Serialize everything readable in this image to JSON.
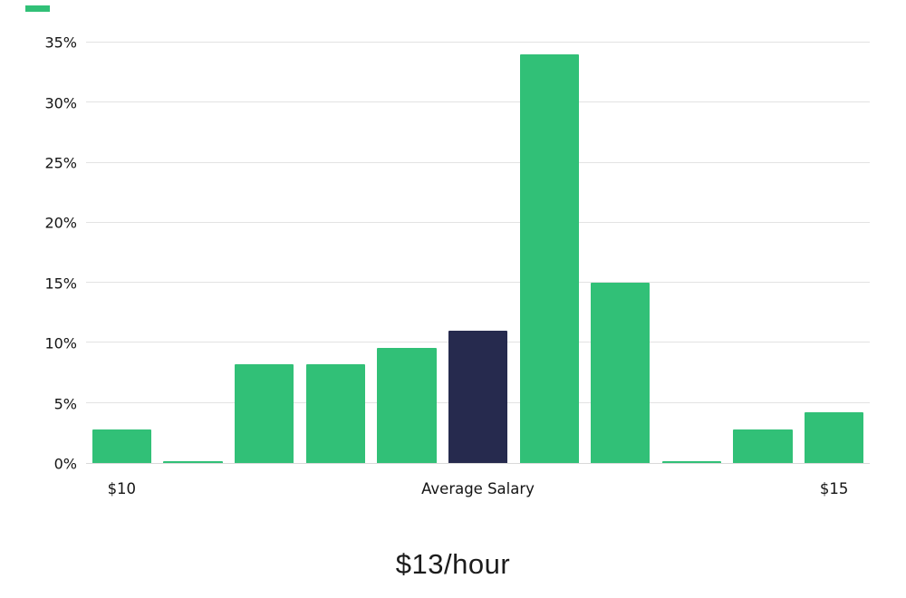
{
  "accent_color": "#31c077",
  "highlight_color": "#262a4e",
  "caption": "$13/hour",
  "chart_data": {
    "type": "bar",
    "title": "$13/hour",
    "xlabel": "",
    "ylabel": "",
    "ylim": [
      0,
      36.9
    ],
    "grid": true,
    "legend": "none",
    "yticks": [
      0,
      5,
      10,
      15,
      20,
      25,
      30,
      35
    ],
    "ytick_labels": [
      "0%",
      "5%",
      "10%",
      "15%",
      "20%",
      "25%",
      "30%",
      "35%"
    ],
    "x_axis_labels": [
      "$10",
      "Average Salary",
      "$15"
    ],
    "bar_color": "#31c077",
    "highlight_bar_color": "#262a4e",
    "bars": [
      {
        "value": 2.8,
        "label": "$10",
        "highlight": false
      },
      {
        "value": 0.15,
        "label": "",
        "highlight": false
      },
      {
        "value": 8.2,
        "label": "",
        "highlight": false
      },
      {
        "value": 8.2,
        "label": "",
        "highlight": false
      },
      {
        "value": 9.6,
        "label": "",
        "highlight": false
      },
      {
        "value": 11.0,
        "label": "Average Salary",
        "highlight": true
      },
      {
        "value": 34.0,
        "label": "",
        "highlight": false
      },
      {
        "value": 15.0,
        "label": "",
        "highlight": false
      },
      {
        "value": 0.15,
        "label": "",
        "highlight": false
      },
      {
        "value": 2.8,
        "label": "",
        "highlight": false
      },
      {
        "value": 4.2,
        "label": "$15",
        "highlight": false
      }
    ]
  }
}
